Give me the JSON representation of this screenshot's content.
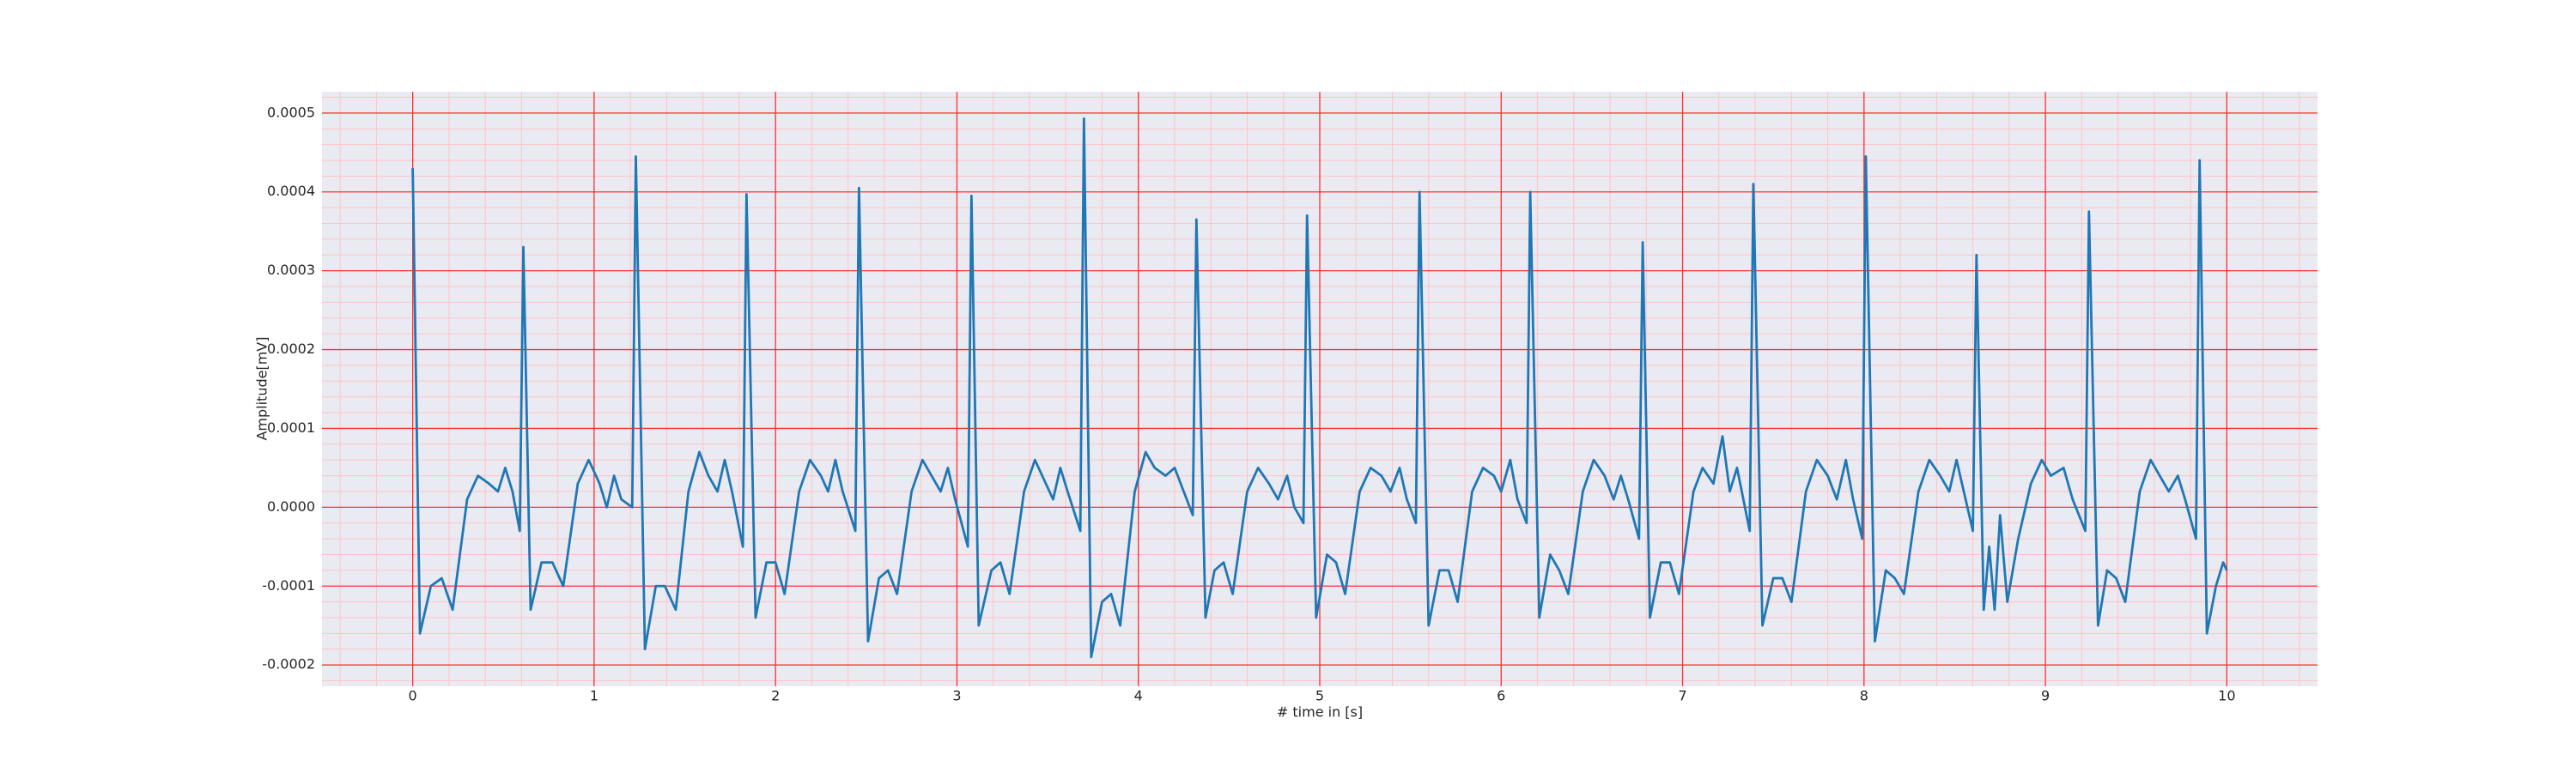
{
  "chart_data": {
    "type": "line",
    "x_label": "# time in [s]",
    "y_label": "Amplitude[mV]",
    "color": "#1f77b4",
    "grid": true,
    "minor_grid": true,
    "xlim": [
      -0.5,
      10.5
    ],
    "ylim": [
      -0.000227,
      0.000527
    ],
    "xticks": [
      0,
      1,
      2,
      3,
      4,
      5,
      6,
      7,
      8,
      9,
      10
    ],
    "yticks": [
      {
        "value": -0.0002,
        "label": "-0.0002"
      },
      {
        "value": -0.0001,
        "label": "-0.0001"
      },
      {
        "value": 0,
        "label": "0.0000"
      },
      {
        "value": 0.0001,
        "label": "0.0001"
      },
      {
        "value": 0.0002,
        "label": "0.0002"
      },
      {
        "value": 0.0003,
        "label": "0.0003"
      },
      {
        "value": 0.0004,
        "label": "0.0004"
      },
      {
        "value": 0.0005,
        "label": "0.0005"
      }
    ],
    "x": [
      0.0,
      0.04,
      0.1,
      0.16,
      0.22,
      0.3,
      0.36,
      0.42,
      0.47,
      0.51,
      0.55,
      0.59,
      0.61,
      0.65,
      0.71,
      0.77,
      0.83,
      0.91,
      0.97,
      1.03,
      1.07,
      1.11,
      1.15,
      1.21,
      1.23,
      1.28,
      1.34,
      1.39,
      1.45,
      1.52,
      1.58,
      1.63,
      1.68,
      1.72,
      1.76,
      1.82,
      1.84,
      1.89,
      1.95,
      2.0,
      2.05,
      2.13,
      2.19,
      2.25,
      2.29,
      2.33,
      2.37,
      2.44,
      2.46,
      2.51,
      2.57,
      2.62,
      2.67,
      2.75,
      2.81,
      2.86,
      2.91,
      2.95,
      2.99,
      3.06,
      3.08,
      3.12,
      3.19,
      3.24,
      3.29,
      3.37,
      3.43,
      3.49,
      3.53,
      3.57,
      3.61,
      3.68,
      3.7,
      3.74,
      3.8,
      3.85,
      3.9,
      3.98,
      4.04,
      4.09,
      4.15,
      4.2,
      4.25,
      4.3,
      4.32,
      4.37,
      4.42,
      4.47,
      4.52,
      4.6,
      4.66,
      4.72,
      4.77,
      4.82,
      4.86,
      4.91,
      4.93,
      4.98,
      5.04,
      5.09,
      5.14,
      5.22,
      5.28,
      5.34,
      5.39,
      5.44,
      5.48,
      5.53,
      5.55,
      5.6,
      5.66,
      5.71,
      5.76,
      5.84,
      5.9,
      5.96,
      6.0,
      6.05,
      6.09,
      6.14,
      6.16,
      6.21,
      6.27,
      6.32,
      6.37,
      6.45,
      6.51,
      6.57,
      6.62,
      6.66,
      6.7,
      6.76,
      6.78,
      6.82,
      6.88,
      6.93,
      6.98,
      7.06,
      7.11,
      7.17,
      7.22,
      7.26,
      7.3,
      7.37,
      7.39,
      7.44,
      7.5,
      7.55,
      7.6,
      7.68,
      7.74,
      7.8,
      7.85,
      7.9,
      7.94,
      7.99,
      8.01,
      8.06,
      8.12,
      8.17,
      8.22,
      8.3,
      8.36,
      8.42,
      8.47,
      8.51,
      8.55,
      8.6,
      8.62,
      8.66,
      8.69,
      8.72,
      8.75,
      8.79,
      8.85,
      8.92,
      8.98,
      9.03,
      9.1,
      9.15,
      9.22,
      9.24,
      9.29,
      9.34,
      9.39,
      9.44,
      9.52,
      9.58,
      9.63,
      9.68,
      9.73,
      9.77,
      9.83,
      9.85,
      9.89,
      9.94,
      9.98,
      10.0
    ],
    "values": [
      0.00043,
      -0.00016,
      -0.0001,
      -9e-05,
      -0.00013,
      1e-05,
      4e-05,
      3e-05,
      2e-05,
      5e-05,
      2e-05,
      -3e-05,
      0.00033,
      -0.00013,
      -7e-05,
      -7e-05,
      -0.0001,
      3e-05,
      6e-05,
      3e-05,
      0.0,
      4e-05,
      1e-05,
      0.0,
      0.000445,
      -0.00018,
      -0.0001,
      -0.0001,
      -0.00013,
      2e-05,
      7e-05,
      4e-05,
      2e-05,
      6e-05,
      2e-05,
      -5e-05,
      0.000397,
      -0.00014,
      -7e-05,
      -7e-05,
      -0.00011,
      2e-05,
      6e-05,
      4e-05,
      2e-05,
      6e-05,
      2e-05,
      -3e-05,
      0.000405,
      -0.00017,
      -9e-05,
      -8e-05,
      -0.00011,
      2e-05,
      6e-05,
      4e-05,
      2e-05,
      5e-05,
      1e-05,
      -5e-05,
      0.000395,
      -0.00015,
      -8e-05,
      -7e-05,
      -0.00011,
      2e-05,
      6e-05,
      3e-05,
      1e-05,
      5e-05,
      2e-05,
      -3e-05,
      0.000493,
      -0.00019,
      -0.00012,
      -0.00011,
      -0.00015,
      2e-05,
      7e-05,
      5e-05,
      4e-05,
      5e-05,
      2e-05,
      -1e-05,
      0.000365,
      -0.00014,
      -8e-05,
      -7e-05,
      -0.00011,
      2e-05,
      5e-05,
      3e-05,
      1e-05,
      4e-05,
      0.0,
      -2e-05,
      0.00037,
      -0.00014,
      -6e-05,
      -7e-05,
      -0.00011,
      2e-05,
      5e-05,
      4e-05,
      2e-05,
      5e-05,
      1e-05,
      -2e-05,
      0.0004,
      -0.00015,
      -8e-05,
      -8e-05,
      -0.00012,
      2e-05,
      5e-05,
      4e-05,
      2e-05,
      6e-05,
      1e-05,
      -2e-05,
      0.0004,
      -0.00014,
      -6e-05,
      -8e-05,
      -0.00011,
      2e-05,
      6e-05,
      4e-05,
      1e-05,
      4e-05,
      1e-05,
      -4e-05,
      0.000336,
      -0.00014,
      -7e-05,
      -7e-05,
      -0.00011,
      2e-05,
      5e-05,
      3e-05,
      9e-05,
      2e-05,
      5e-05,
      -3e-05,
      0.00041,
      -0.00015,
      -9e-05,
      -9e-05,
      -0.00012,
      2e-05,
      6e-05,
      4e-05,
      1e-05,
      6e-05,
      1e-05,
      -4e-05,
      0.000445,
      -0.00017,
      -8e-05,
      -9e-05,
      -0.00011,
      2e-05,
      6e-05,
      4e-05,
      2e-05,
      6e-05,
      2e-05,
      -3e-05,
      0.00032,
      -0.00013,
      -5e-05,
      -0.00013,
      -1e-05,
      -0.00012,
      -4e-05,
      3e-05,
      6e-05,
      4e-05,
      5e-05,
      1e-05,
      -3e-05,
      0.000375,
      -0.00015,
      -8e-05,
      -9e-05,
      -0.00012,
      2e-05,
      6e-05,
      4e-05,
      2e-05,
      4e-05,
      1e-05,
      -4e-05,
      0.00044,
      -0.00016,
      -0.0001,
      -7e-05,
      -8e-05
    ]
  }
}
